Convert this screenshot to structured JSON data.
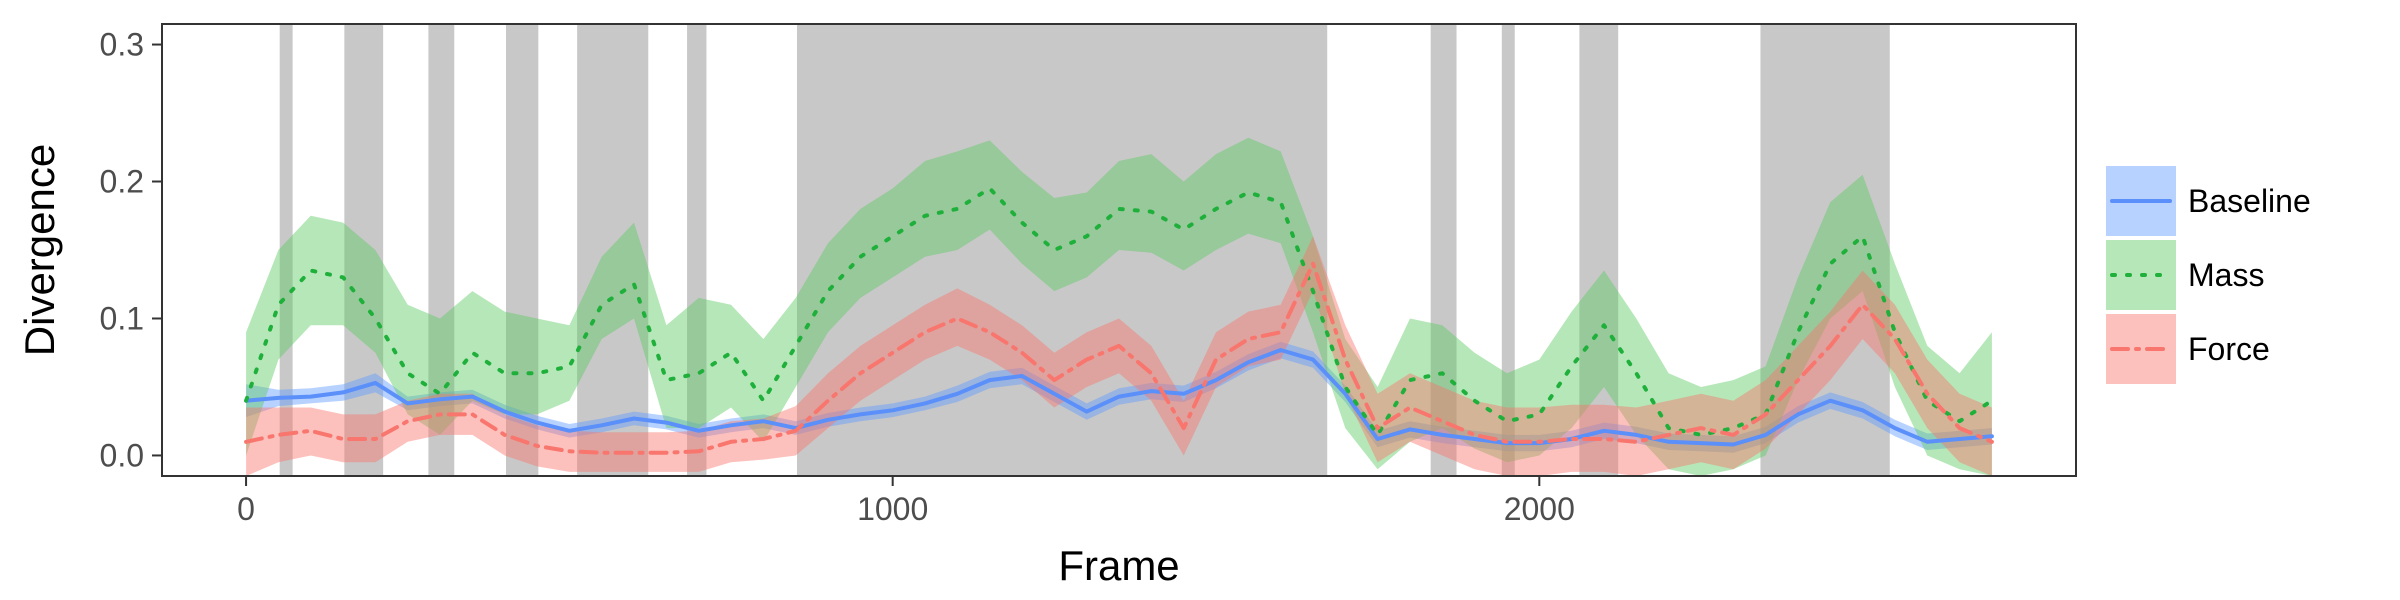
{
  "chart_data": {
    "type": "line",
    "xlabel": "Frame",
    "ylabel": "Divergence",
    "xlim": [
      -130,
      2830
    ],
    "ylim": [
      -0.015,
      0.315
    ],
    "x_ticks": [
      0,
      1000,
      2000
    ],
    "y_ticks": [
      0.0,
      0.1,
      0.2,
      0.3
    ],
    "y_tick_labels": [
      "0.0",
      "0.1",
      "0.2",
      "0.3"
    ],
    "grid": false,
    "legend_position": "right",
    "shaded_regions": [
      [
        52,
        72
      ],
      [
        152,
        212
      ],
      [
        282,
        322
      ],
      [
        402,
        452
      ],
      [
        512,
        622
      ],
      [
        682,
        712
      ],
      [
        852,
        1672
      ],
      [
        1832,
        1872
      ],
      [
        1942,
        1962
      ],
      [
        2062,
        2122
      ],
      [
        2342,
        2542
      ]
    ],
    "shade_color": "#c8c8c8",
    "series": [
      {
        "name": "Baseline",
        "color": "#5b8ff9",
        "band_color": "#619cff",
        "dash": "",
        "x": [
          0,
          50,
          100,
          150,
          200,
          250,
          300,
          350,
          400,
          450,
          500,
          550,
          600,
          650,
          700,
          750,
          800,
          850,
          900,
          950,
          1000,
          1050,
          1100,
          1150,
          1200,
          1250,
          1300,
          1350,
          1400,
          1450,
          1500,
          1550,
          1600,
          1650,
          1700,
          1750,
          1800,
          1850,
          1900,
          1950,
          2000,
          2050,
          2100,
          2150,
          2200,
          2250,
          2300,
          2350,
          2400,
          2450,
          2500,
          2550,
          2600,
          2650,
          2700
        ],
        "y": [
          0.04,
          0.042,
          0.043,
          0.046,
          0.053,
          0.038,
          0.041,
          0.043,
          0.032,
          0.024,
          0.018,
          0.022,
          0.027,
          0.024,
          0.018,
          0.022,
          0.025,
          0.02,
          0.026,
          0.03,
          0.033,
          0.038,
          0.045,
          0.055,
          0.058,
          0.045,
          0.032,
          0.043,
          0.047,
          0.045,
          0.055,
          0.068,
          0.077,
          0.07,
          0.045,
          0.012,
          0.019,
          0.015,
          0.012,
          0.009,
          0.009,
          0.012,
          0.018,
          0.015,
          0.01,
          0.009,
          0.008,
          0.015,
          0.03,
          0.04,
          0.033,
          0.02,
          0.01,
          0.012,
          0.014
        ],
        "lower": [
          0.028,
          0.036,
          0.038,
          0.04,
          0.046,
          0.033,
          0.036,
          0.038,
          0.027,
          0.019,
          0.013,
          0.017,
          0.022,
          0.019,
          0.013,
          0.017,
          0.02,
          0.015,
          0.021,
          0.025,
          0.028,
          0.033,
          0.039,
          0.049,
          0.052,
          0.039,
          0.026,
          0.037,
          0.041,
          0.039,
          0.049,
          0.062,
          0.071,
          0.064,
          0.039,
          0.006,
          0.013,
          0.009,
          0.006,
          0.003,
          0.003,
          0.006,
          0.012,
          0.009,
          0.004,
          0.003,
          0.002,
          0.009,
          0.024,
          0.034,
          0.027,
          0.014,
          0.004,
          0.006,
          0.008
        ],
        "upper": [
          0.052,
          0.048,
          0.049,
          0.052,
          0.06,
          0.043,
          0.046,
          0.048,
          0.037,
          0.029,
          0.023,
          0.027,
          0.032,
          0.029,
          0.023,
          0.027,
          0.03,
          0.025,
          0.031,
          0.035,
          0.038,
          0.043,
          0.051,
          0.061,
          0.064,
          0.051,
          0.038,
          0.049,
          0.053,
          0.051,
          0.061,
          0.074,
          0.083,
          0.076,
          0.051,
          0.018,
          0.025,
          0.021,
          0.018,
          0.015,
          0.015,
          0.018,
          0.024,
          0.021,
          0.016,
          0.015,
          0.014,
          0.021,
          0.036,
          0.046,
          0.039,
          0.026,
          0.016,
          0.018,
          0.02
        ]
      },
      {
        "name": "Mass",
        "color": "#1fb03b",
        "band_color": "#5ec962",
        "dash": "3,12",
        "x": [
          0,
          50,
          100,
          150,
          200,
          250,
          300,
          350,
          400,
          450,
          500,
          550,
          600,
          650,
          700,
          750,
          800,
          850,
          900,
          950,
          1000,
          1050,
          1100,
          1150,
          1200,
          1250,
          1300,
          1350,
          1400,
          1450,
          1500,
          1550,
          1600,
          1650,
          1700,
          1750,
          1800,
          1850,
          1900,
          1950,
          2000,
          2050,
          2100,
          2150,
          2200,
          2250,
          2300,
          2350,
          2400,
          2450,
          2500,
          2550,
          2600,
          2650,
          2700
        ],
        "y": [
          0.04,
          0.11,
          0.135,
          0.13,
          0.1,
          0.06,
          0.045,
          0.075,
          0.06,
          0.06,
          0.065,
          0.11,
          0.125,
          0.055,
          0.06,
          0.075,
          0.04,
          0.08,
          0.12,
          0.145,
          0.16,
          0.175,
          0.18,
          0.195,
          0.17,
          0.15,
          0.16,
          0.18,
          0.178,
          0.165,
          0.18,
          0.192,
          0.185,
          0.12,
          0.05,
          0.015,
          0.055,
          0.06,
          0.04,
          0.025,
          0.03,
          0.065,
          0.095,
          0.06,
          0.02,
          0.015,
          0.02,
          0.03,
          0.09,
          0.14,
          0.16,
          0.09,
          0.04,
          0.025,
          0.04
        ],
        "lower": [
          0.0,
          0.07,
          0.095,
          0.095,
          0.075,
          0.03,
          0.015,
          0.04,
          0.03,
          0.03,
          0.04,
          0.085,
          0.1,
          0.02,
          0.02,
          0.035,
          0.01,
          0.05,
          0.09,
          0.115,
          0.13,
          0.145,
          0.15,
          0.165,
          0.14,
          0.12,
          0.13,
          0.15,
          0.148,
          0.135,
          0.15,
          0.162,
          0.155,
          0.09,
          0.02,
          -0.01,
          0.01,
          0.02,
          0.005,
          -0.005,
          0.0,
          0.02,
          0.05,
          0.015,
          -0.01,
          -0.015,
          -0.01,
          0.0,
          0.055,
          0.1,
          0.12,
          0.05,
          0.0,
          -0.01,
          -0.015
        ],
        "upper": [
          0.09,
          0.15,
          0.175,
          0.17,
          0.15,
          0.11,
          0.1,
          0.12,
          0.105,
          0.1,
          0.095,
          0.145,
          0.17,
          0.095,
          0.115,
          0.11,
          0.085,
          0.115,
          0.155,
          0.18,
          0.195,
          0.215,
          0.222,
          0.23,
          0.207,
          0.188,
          0.192,
          0.215,
          0.22,
          0.2,
          0.22,
          0.232,
          0.222,
          0.16,
          0.085,
          0.05,
          0.1,
          0.095,
          0.075,
          0.06,
          0.07,
          0.105,
          0.135,
          0.1,
          0.06,
          0.05,
          0.055,
          0.065,
          0.13,
          0.185,
          0.205,
          0.14,
          0.08,
          0.06,
          0.09
        ]
      },
      {
        "name": "Force",
        "color": "#f8766d",
        "band_color": "#f8766d",
        "dash": "16,8,3,8",
        "x": [
          0,
          50,
          100,
          150,
          200,
          250,
          300,
          350,
          400,
          450,
          500,
          550,
          600,
          650,
          700,
          750,
          800,
          850,
          900,
          950,
          1000,
          1050,
          1100,
          1150,
          1200,
          1250,
          1300,
          1350,
          1400,
          1450,
          1500,
          1550,
          1600,
          1650,
          1700,
          1750,
          1800,
          1850,
          1900,
          1950,
          2000,
          2050,
          2100,
          2150,
          2200,
          2250,
          2300,
          2350,
          2400,
          2450,
          2500,
          2550,
          2600,
          2650,
          2700
        ],
        "y": [
          0.01,
          0.015,
          0.018,
          0.012,
          0.012,
          0.025,
          0.03,
          0.03,
          0.015,
          0.007,
          0.003,
          0.002,
          0.002,
          0.002,
          0.003,
          0.01,
          0.012,
          0.018,
          0.04,
          0.06,
          0.075,
          0.09,
          0.1,
          0.09,
          0.075,
          0.055,
          0.07,
          0.08,
          0.06,
          0.02,
          0.07,
          0.085,
          0.09,
          0.14,
          0.07,
          0.02,
          0.035,
          0.025,
          0.015,
          0.01,
          0.01,
          0.012,
          0.012,
          0.01,
          0.015,
          0.02,
          0.015,
          0.03,
          0.055,
          0.08,
          0.11,
          0.085,
          0.045,
          0.02,
          0.01
        ],
        "lower": [
          -0.015,
          -0.005,
          0.0,
          -0.005,
          -0.005,
          0.01,
          0.015,
          0.015,
          0.0,
          -0.008,
          -0.012,
          -0.012,
          -0.012,
          -0.012,
          -0.012,
          -0.005,
          -0.003,
          0.0,
          0.02,
          0.04,
          0.055,
          0.07,
          0.08,
          0.07,
          0.055,
          0.035,
          0.05,
          0.06,
          0.04,
          0.0,
          0.05,
          0.065,
          0.07,
          0.12,
          0.045,
          -0.005,
          0.01,
          0.0,
          -0.01,
          -0.015,
          -0.015,
          -0.012,
          -0.012,
          -0.015,
          -0.01,
          -0.005,
          -0.01,
          0.005,
          0.03,
          0.055,
          0.085,
          0.06,
          0.02,
          -0.005,
          -0.015
        ],
        "upper": [
          0.035,
          0.035,
          0.035,
          0.03,
          0.03,
          0.04,
          0.045,
          0.045,
          0.03,
          0.022,
          0.018,
          0.017,
          0.017,
          0.017,
          0.018,
          0.025,
          0.027,
          0.036,
          0.06,
          0.08,
          0.095,
          0.11,
          0.122,
          0.11,
          0.095,
          0.075,
          0.09,
          0.1,
          0.08,
          0.04,
          0.09,
          0.105,
          0.11,
          0.16,
          0.095,
          0.045,
          0.06,
          0.05,
          0.04,
          0.035,
          0.035,
          0.037,
          0.037,
          0.035,
          0.04,
          0.045,
          0.04,
          0.055,
          0.08,
          0.105,
          0.135,
          0.11,
          0.07,
          0.045,
          0.035
        ]
      }
    ]
  }
}
